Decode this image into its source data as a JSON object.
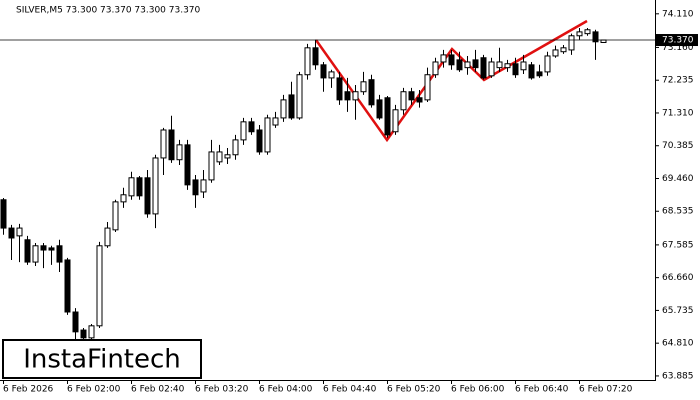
{
  "chart_data": {
    "type": "candlestick",
    "header": "SILVER,M5  73.300 73.370 73.300 73.370",
    "watermark": "InstaFintech",
    "last_price": {
      "value": 73.37,
      "label": "73.370"
    },
    "categories": [
      "6 Feb 2026",
      null,
      null,
      null,
      null,
      null,
      null,
      null,
      "6 Feb 02:00",
      null,
      null,
      null,
      null,
      null,
      null,
      null,
      "6 Feb 02:40",
      null,
      null,
      null,
      null,
      null,
      null,
      null,
      "6 Feb 03:20",
      null,
      null,
      null,
      null,
      null,
      null,
      null,
      "6 Feb 04:00",
      null,
      null,
      null,
      null,
      null,
      null,
      null,
      "6 Feb 04:40",
      null,
      null,
      null,
      null,
      null,
      null,
      null,
      "6 Feb 05:20",
      null,
      null,
      null,
      null,
      null,
      null,
      null,
      "6 Feb 06:00",
      null,
      null,
      null,
      null,
      null,
      null,
      null,
      "6 Feb 06:40",
      null,
      null,
      null,
      null,
      null,
      null,
      null,
      "6 Feb 07:20",
      null,
      null,
      null
    ],
    "open": [
      68.86,
      68.06,
      67.84,
      67.73,
      67.1,
      67.56,
      67.5,
      67.56,
      67.16,
      65.69,
      65.18,
      64.96,
      65.3,
      67.56,
      68.01,
      68.8,
      68.97,
      69.48,
      69.48,
      68.46,
      70.04,
      70.83,
      69.99,
      70.41,
      69.42,
      69.08,
      69.42,
      69.93,
      70.04,
      70.13,
      70.55,
      71.06,
      70.83,
      70.21,
      70.97,
      71.17,
      71.82,
      71.17,
      72.39,
      73.15,
      72.67,
      72.3,
      72.3,
      71.91,
      71.68,
      71.91,
      72.25,
      71.68,
      71.74,
      70.78,
      71.4,
      71.91,
      71.74,
      71.68,
      72.39,
      72.75,
      72.95,
      72.81,
      72.59,
      72.81,
      72.87,
      72.36,
      72.59,
      72.59,
      72.7,
      72.53,
      72.67,
      72.47,
      72.47,
      72.92,
      73.04,
      73.09,
      73.49,
      73.55,
      73.6,
      73.3
    ],
    "high": [
      68.91,
      68.15,
      68.18,
      67.84,
      67.64,
      67.64,
      67.56,
      67.73,
      67.22,
      65.8,
      65.24,
      65.35,
      67.67,
      68.23,
      68.86,
      69.2,
      69.65,
      69.53,
      69.7,
      70.13,
      70.89,
      71.23,
      70.55,
      70.55,
      69.56,
      69.7,
      70.55,
      70.41,
      70.32,
      70.69,
      71.17,
      71.17,
      70.97,
      71.26,
      71.34,
      71.82,
      72.19,
      72.47,
      73.26,
      73.38,
      72.75,
      72.53,
      72.47,
      72.3,
      72.1,
      72.47,
      72.39,
      71.82,
      71.79,
      71.54,
      72.02,
      72.02,
      71.96,
      72.59,
      72.87,
      73.09,
      73.09,
      73.04,
      72.92,
      73.09,
      72.95,
      72.87,
      73.15,
      72.81,
      72.87,
      72.95,
      72.75,
      72.67,
      73.04,
      73.21,
      73.23,
      73.55,
      73.71,
      73.71,
      73.66,
      73.37
    ],
    "low": [
      67.87,
      67.16,
      67.1,
      67.02,
      66.99,
      66.93,
      67.02,
      66.82,
      65.61,
      64.9,
      64.76,
      64.9,
      65.24,
      67.5,
      67.95,
      68.63,
      68.86,
      68.86,
      68.35,
      68.06,
      69.56,
      69.9,
      69.84,
      69.14,
      68.63,
      68.91,
      69.34,
      69.84,
      69.87,
      69.99,
      70.41,
      70.69,
      70.13,
      70.13,
      70.89,
      71.06,
      71.12,
      71.12,
      72.25,
      72.53,
      71.91,
      72.02,
      71.54,
      71.34,
      71.12,
      71.82,
      71.46,
      71.12,
      70.61,
      70.69,
      71.26,
      71.54,
      71.46,
      71.62,
      72.3,
      72.59,
      72.53,
      72.47,
      72.39,
      72.47,
      72.25,
      72.3,
      72.47,
      72.47,
      72.3,
      72.41,
      72.25,
      72.3,
      72.36,
      72.87,
      72.98,
      72.95,
      73.38,
      73.49,
      72.81,
      73.3
    ],
    "close": [
      68.06,
      67.78,
      68.06,
      67.1,
      67.56,
      67.44,
      67.44,
      67.1,
      65.69,
      65.13,
      64.96,
      65.3,
      67.56,
      68.06,
      68.8,
      69.0,
      69.48,
      68.97,
      68.46,
      70.04,
      70.83,
      69.99,
      70.41,
      69.28,
      69.0,
      69.42,
      70.21,
      70.21,
      70.13,
      70.55,
      71.06,
      70.78,
      70.21,
      71.17,
      71.17,
      71.68,
      71.17,
      72.39,
      73.15,
      72.67,
      72.3,
      72.47,
      71.68,
      71.68,
      71.91,
      72.19,
      71.54,
      71.17,
      70.69,
      71.4,
      71.91,
      71.68,
      71.62,
      72.39,
      72.75,
      72.95,
      72.67,
      72.53,
      72.75,
      72.59,
      72.3,
      72.75,
      72.75,
      72.7,
      72.39,
      72.75,
      72.3,
      72.36,
      72.92,
      73.09,
      73.15,
      73.49,
      73.6,
      73.66,
      73.32,
      73.37
    ],
    "ylim": [
      63.77,
      74.5
    ],
    "yticks": [
      {
        "value": 74.11,
        "label": "74.110"
      },
      {
        "value": 73.16,
        "label": "73.160"
      },
      {
        "value": 72.235,
        "label": "72.235"
      },
      {
        "value": 71.31,
        "label": "71.310"
      },
      {
        "value": 70.385,
        "label": "70.385"
      },
      {
        "value": 69.46,
        "label": "69.460"
      },
      {
        "value": 68.535,
        "label": "68.535"
      },
      {
        "value": 67.585,
        "label": "67.585"
      },
      {
        "value": 66.66,
        "label": "66.660"
      },
      {
        "value": 65.735,
        "label": "65.735"
      },
      {
        "value": 64.81,
        "label": "64.810"
      },
      {
        "value": 63.885,
        "label": "63.885"
      }
    ],
    "grid": false
  }
}
